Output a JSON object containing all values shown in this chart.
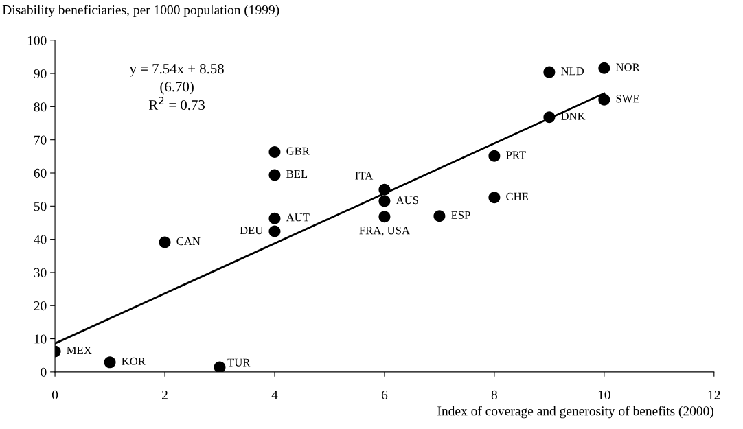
{
  "chart_data": {
    "type": "scatter",
    "xlabel": "Index of coverage and generosity of benefits (2000)",
    "ylabel": "Disability beneficiaries, per 1000 population (1999)",
    "xlim": [
      0,
      12
    ],
    "xticks": [
      0,
      2,
      4,
      6,
      8,
      10,
      12
    ],
    "ylim": [
      0,
      100
    ],
    "yticks": [
      0,
      10,
      20,
      30,
      40,
      50,
      60,
      70,
      80,
      90,
      100
    ],
    "grid": false,
    "legend": false,
    "series": [
      {
        "marker": "circle",
        "color": "#000000",
        "x": [
          0,
          1,
          3,
          2,
          4,
          4,
          4,
          4,
          6,
          6,
          6,
          7,
          8,
          8,
          9,
          9,
          10,
          10
        ],
        "values": [
          6.2,
          2.9,
          1.4,
          39.1,
          42.4,
          46.3,
          59.4,
          66.3,
          55.0,
          51.5,
          46.8,
          47.0,
          65.1,
          52.6,
          76.8,
          90.4,
          91.6,
          82.1
        ]
      },
      {
        "type": "line",
        "color": "#000000",
        "line_style": "solid",
        "x": [
          0,
          10
        ],
        "values": [
          8.6,
          84.0
        ]
      }
    ],
    "annotations": [
      "y = 7.54x + 8.58\n(6.70)\nR$^{2}$ = 0.73",
      {
        "text": "MEX",
        "x": 0,
        "y": 6.2
      },
      {
        "text": "KOR",
        "x": 1,
        "y": 2.9
      },
      {
        "text": "TUR",
        "x": 3,
        "y": 1.4
      },
      {
        "text": "CAN",
        "x": 2,
        "y": 39.1
      },
      {
        "text": "DEU",
        "x": 4,
        "y": 42.4
      },
      {
        "text": "AUT",
        "x": 4,
        "y": 46.3
      },
      {
        "text": "BEL",
        "x": 4,
        "y": 59.4
      },
      {
        "text": "GBR",
        "x": 4,
        "y": 66.3
      },
      {
        "text": "ITA",
        "x": 6,
        "y": 55.0
      },
      {
        "text": "AUS",
        "x": 6,
        "y": 51.5
      },
      {
        "text": "FRA, USA",
        "x": 6,
        "y": 46.8
      },
      {
        "text": "ESP",
        "x": 7,
        "y": 47.0
      },
      {
        "text": "PRT",
        "x": 8,
        "y": 65.1
      },
      {
        "text": "CHE",
        "x": 8,
        "y": 52.6
      },
      {
        "text": "DNK",
        "x": 9,
        "y": 76.8
      },
      {
        "text": "NLD",
        "x": 9,
        "y": 90.4
      },
      {
        "text": "NOR",
        "x": 10,
        "y": 91.6
      },
      {
        "text": "SWE",
        "x": 10,
        "y": 82.1
      }
    ]
  }
}
